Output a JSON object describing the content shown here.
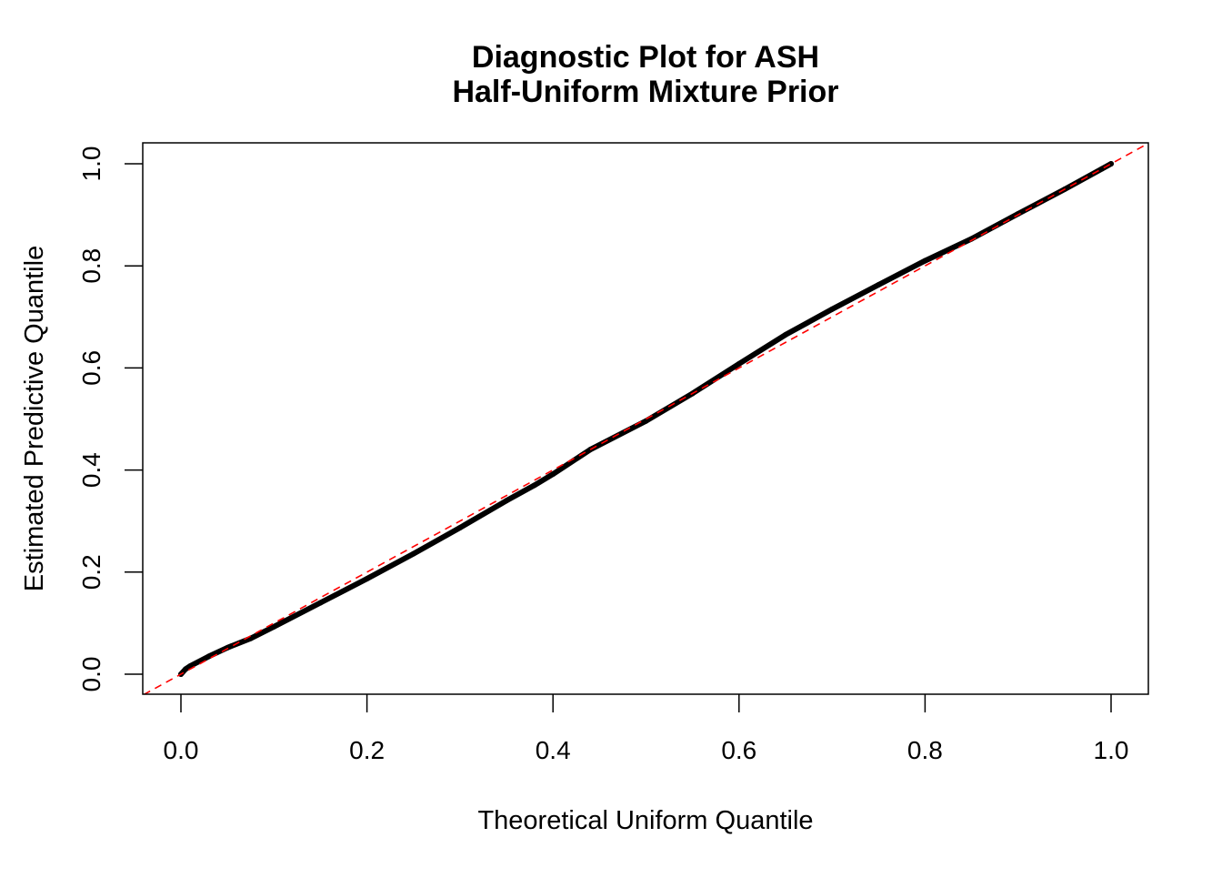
{
  "chart_data": {
    "type": "line",
    "title": "Diagnostic Plot for ASH",
    "subtitle": "Half-Uniform Mixture Prior",
    "xlabel": "Theoretical Uniform Quantile",
    "ylabel": "Estimated Predictive Quantile",
    "xlim": [
      0,
      1
    ],
    "ylim": [
      0,
      1
    ],
    "xticks": [
      "0.0",
      "0.2",
      "0.4",
      "0.6",
      "0.8",
      "1.0"
    ],
    "yticks": [
      "0.0",
      "0.2",
      "0.4",
      "0.6",
      "0.8",
      "1.0"
    ],
    "grid": false,
    "series": [
      {
        "style": "thick-points",
        "color": "#000000",
        "x": [
          0,
          0.005,
          0.01,
          0.03,
          0.05,
          0.075,
          0.1,
          0.15,
          0.2,
          0.25,
          0.3,
          0.35,
          0.38,
          0.4,
          0.44,
          0.5,
          0.55,
          0.6,
          0.65,
          0.7,
          0.75,
          0.8,
          0.85,
          0.9,
          0.95,
          0.99,
          1.0
        ],
        "y": [
          0,
          0.01,
          0.016,
          0.035,
          0.052,
          0.07,
          0.093,
          0.14,
          0.187,
          0.236,
          0.287,
          0.34,
          0.37,
          0.392,
          0.44,
          0.496,
          0.55,
          0.608,
          0.665,
          0.715,
          0.763,
          0.81,
          0.853,
          0.902,
          0.95,
          0.99,
          1.0
        ]
      },
      {
        "style": "dashed-line",
        "color": "#ff0000",
        "x": [
          -0.04,
          1.04
        ],
        "y": [
          -0.04,
          1.04
        ]
      }
    ]
  }
}
